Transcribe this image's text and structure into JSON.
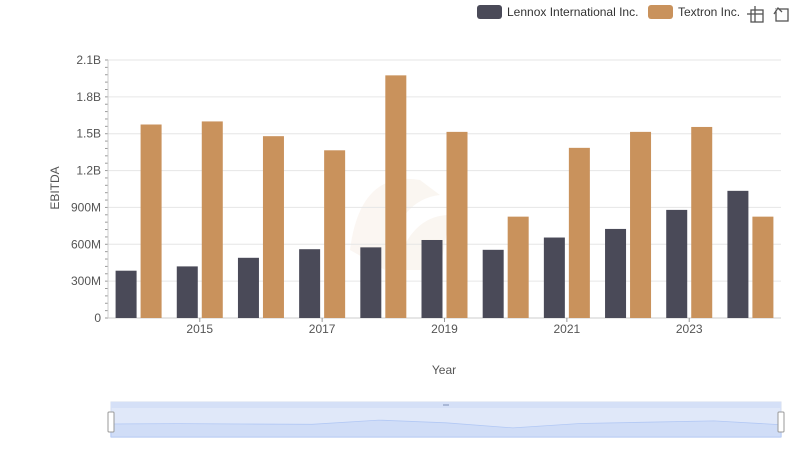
{
  "chart_data": {
    "type": "bar",
    "title": "",
    "xlabel": "Year",
    "ylabel": "EBITDA",
    "categories": [
      "2014",
      "2015",
      "2016",
      "2017",
      "2018",
      "2019",
      "2020",
      "2021",
      "2022",
      "2023",
      "2024"
    ],
    "x_tick_labels": [
      "2015",
      "2017",
      "2019",
      "2021",
      "2023"
    ],
    "y_ticks": [
      0,
      300000000,
      600000000,
      900000000,
      1200000000,
      1500000000,
      1800000000,
      2100000000
    ],
    "y_tick_labels": [
      "0",
      "300M",
      "600M",
      "900M",
      "1.2B",
      "1.5B",
      "1.8B",
      "2.1B"
    ],
    "ylim": [
      0,
      2100000000
    ],
    "grid": true,
    "legend_position": "top-right",
    "series": [
      {
        "name": "Lennox International Inc.",
        "color": "#4a4a58",
        "values": [
          385000000,
          420000000,
          490000000,
          560000000,
          575000000,
          635000000,
          555000000,
          655000000,
          725000000,
          880000000,
          1035000000
        ]
      },
      {
        "name": "Textron Inc.",
        "color": "#c9925c",
        "values": [
          1575000000,
          1600000000,
          1480000000,
          1365000000,
          1975000000,
          1515000000,
          825000000,
          1385000000,
          1515000000,
          1555000000,
          825000000
        ]
      }
    ]
  },
  "toolbar": {
    "zoom_icon": "crosshair-zoom-icon",
    "reset_icon": "reset-arrow-icon"
  }
}
